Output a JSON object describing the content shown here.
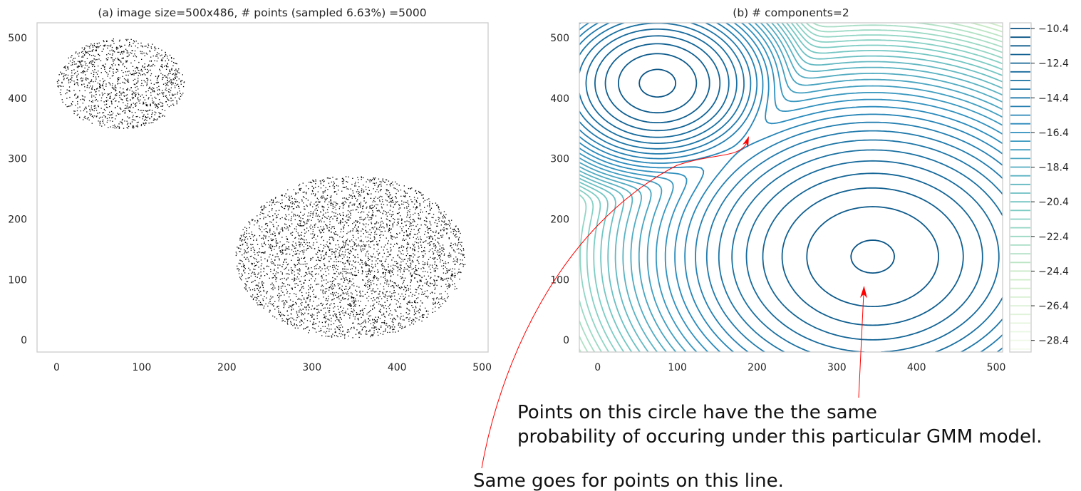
{
  "chart_data": [
    {
      "type": "scatter",
      "title": "(a) image size=500x486, # points (sampled 6.63%) =5000",
      "xlim": [
        -23,
        507
      ],
      "ylim": [
        -20,
        525
      ],
      "xticks": [
        "0",
        "100",
        "200",
        "300",
        "400",
        "500"
      ],
      "yticks": [
        "0",
        "100",
        "200",
        "300",
        "400",
        "500"
      ],
      "grid": false,
      "point_color": "#000000",
      "clusters": [
        {
          "center": [
            75,
            425
          ],
          "radii": [
            75,
            75
          ],
          "n_points": 1250
        },
        {
          "center": [
            345,
            138
          ],
          "radii": [
            135,
            135
          ],
          "n_points": 3750
        }
      ]
    },
    {
      "type": "contour",
      "title": "(b) # components=2",
      "xlim": [
        -23,
        508
      ],
      "ylim": [
        -20,
        525
      ],
      "xticks": [
        "0",
        "100",
        "200",
        "300",
        "400",
        "500"
      ],
      "yticks": [
        "0",
        "100",
        "200",
        "300",
        "400",
        "500"
      ],
      "components": [
        {
          "mean": [
            75,
            425
          ],
          "std": 43.3,
          "weight": 0.25
        },
        {
          "mean": [
            345,
            138
          ],
          "std": 78,
          "weight": 0.75
        }
      ],
      "levels": {
        "min": -29.4,
        "max": -10.4,
        "step": 0.5
      },
      "colorbar": {
        "ticks": [
          "−10.4",
          "−12.4",
          "−14.4",
          "−16.4",
          "−18.4",
          "−20.4",
          "−22.4",
          "−24.4",
          "−26.4",
          "−28.4"
        ],
        "tick_values": [
          -10.4,
          -12.4,
          -14.4,
          -16.4,
          -18.4,
          -20.4,
          -22.4,
          -24.4,
          -26.4,
          -28.4
        ],
        "colormap": "GnBu"
      }
    }
  ],
  "annotations": {
    "circle_note_line1": "Points on this circle have the the same",
    "circle_note_line2": "probability of occuring under this particular GMM model.",
    "line_note": "Same goes for points on this line.",
    "arrow_color": "#ff0000"
  }
}
